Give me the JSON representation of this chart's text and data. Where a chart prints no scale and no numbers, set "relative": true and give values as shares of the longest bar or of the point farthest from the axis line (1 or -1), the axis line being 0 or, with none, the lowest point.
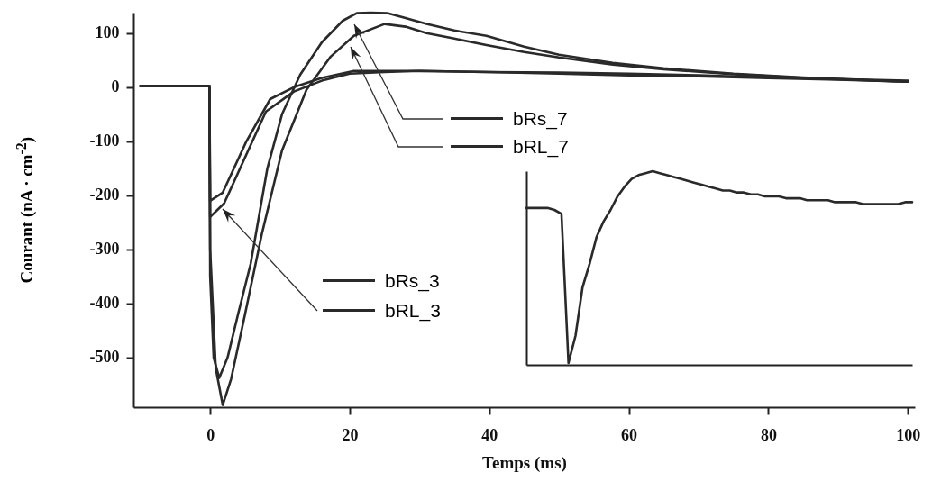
{
  "chart_data": [
    {
      "type": "line",
      "legend": "center",
      "xlabel": "Temps (ms)",
      "ylabel": "Courant (nA · cm$^{-2}$)",
      "xlim": [
        -11,
        101
      ],
      "ylim": [
        -592,
        138
      ],
      "xticks": [
        0,
        20,
        40,
        60,
        80,
        100
      ],
      "yticks": [
        100,
        0,
        -100,
        -200,
        -300,
        -400,
        -500
      ],
      "series": [
        {
          "name": "bRs_3",
          "color": "#2a2a2a",
          "x": [
            -10,
            -5,
            -0.1,
            0,
            1.8,
            5.2,
            8.6,
            12,
            16,
            20.6,
            25,
            30,
            40,
            50,
            60,
            70,
            80,
            90,
            100
          ],
          "values": [
            2,
            2,
            2,
            -210,
            -195,
            -100,
            -22,
            0,
            17,
            30,
            30,
            30,
            28,
            27,
            25,
            22,
            18,
            15,
            12
          ]
        },
        {
          "name": "bRL_3",
          "color": "#2a2a2a",
          "x": [
            -10,
            -5,
            -0.1,
            0,
            2,
            5,
            8,
            12,
            16,
            20,
            25,
            30,
            40,
            50,
            60,
            70,
            80,
            90,
            100
          ],
          "values": [
            2,
            2,
            2,
            -240,
            -215,
            -130,
            -45,
            -8,
            12,
            25,
            28,
            30,
            28,
            25,
            22,
            20,
            17,
            14,
            10
          ]
        },
        {
          "name": "bRs_7",
          "color": "#2a2a2a",
          "x": [
            -10,
            -5,
            -0.1,
            0,
            0.5,
            1.3,
            2.5,
            4,
            5.8,
            8.2,
            10.3,
            12.9,
            16,
            19,
            21,
            23,
            25.4,
            28,
            31,
            35,
            39.6,
            45,
            50,
            57.7,
            65,
            75,
            85,
            100
          ],
          "values": [
            2,
            2,
            2,
            -350,
            -500,
            -538,
            -500,
            -420,
            -327,
            -150,
            -50,
            23,
            83,
            123,
            137,
            138,
            137,
            128,
            117,
            105,
            95,
            75,
            60,
            45,
            35,
            25,
            18,
            10
          ]
        },
        {
          "name": "bRL_7",
          "color": "#2a2a2a",
          "x": [
            -10,
            -5,
            -0.1,
            0,
            0.8,
            1.8,
            3,
            5,
            7.4,
            10.3,
            13.8,
            17.3,
            20.6,
            25,
            28,
            31,
            35,
            39.6,
            45,
            50,
            57.7,
            65,
            75,
            85,
            100
          ],
          "values": [
            2,
            2,
            2,
            -300,
            -520,
            -588,
            -540,
            -420,
            -272,
            -117,
            -5,
            57,
            95,
            117,
            112,
            100,
            90,
            78,
            65,
            55,
            42,
            33,
            24,
            17,
            10
          ]
        }
      ]
    },
    {
      "type": "line",
      "relative": true,
      "categories": [
        null,
        null,
        null,
        null,
        null,
        null,
        null,
        null,
        null,
        null,
        null,
        null,
        null,
        null,
        null,
        null,
        null,
        null,
        null,
        null,
        null,
        null,
        null,
        null,
        null,
        null,
        null,
        null,
        null,
        null,
        null,
        null,
        null,
        null,
        null,
        null,
        null,
        null,
        null,
        null,
        null,
        null,
        null,
        null,
        null,
        null,
        null,
        null,
        null,
        null,
        null,
        null,
        null,
        null,
        null,
        null
      ],
      "series": [
        {
          "color": "#2a2a2a",
          "values": [
            0.81,
            0.81,
            0.81,
            0.81,
            0.8,
            0.78,
            0.01,
            0.15,
            0.4,
            0.52,
            0.66,
            0.74,
            0.8,
            0.87,
            0.92,
            0.96,
            0.98,
            0.99,
            1,
            0.99,
            0.98,
            0.97,
            0.96,
            0.95,
            0.94,
            0.93,
            0.92,
            0.91,
            0.9,
            0.9,
            0.89,
            0.89,
            0.88,
            0.88,
            0.87,
            0.87,
            0.87,
            0.86,
            0.86,
            0.86,
            0.85,
            0.85,
            0.85,
            0.85,
            0.84,
            0.84,
            0.84,
            0.84,
            0.83,
            0.83,
            0.83,
            0.83,
            0.83,
            0.83,
            0.84,
            0.84
          ]
        }
      ]
    }
  ]
}
